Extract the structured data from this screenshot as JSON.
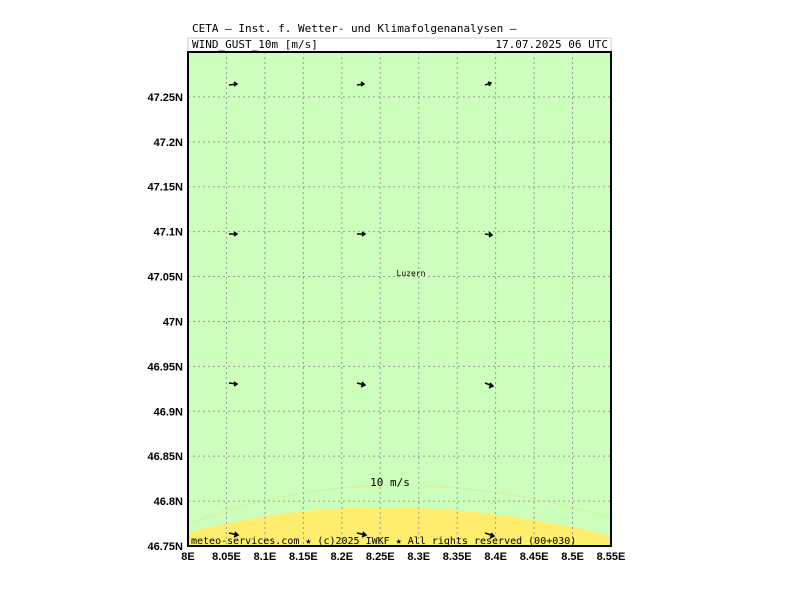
{
  "header": {
    "title": "CETA — Inst. f. Wetter- und Klimafolgenanalysen —",
    "parameter": "WIND_GUST_10m [m/s]",
    "valid_time": "17.07.2025 06 UTC"
  },
  "map": {
    "xlim": [
      8,
      8.55
    ],
    "ylim": [
      46.75,
      47.3
    ],
    "xticks": [
      {
        "value": 8,
        "label": "8E"
      },
      {
        "value": 8.05,
        "label": "8.05E"
      },
      {
        "value": 8.1,
        "label": "8.1E"
      },
      {
        "value": 8.15,
        "label": "8.15E"
      },
      {
        "value": 8.2,
        "label": "8.2E"
      },
      {
        "value": 8.25,
        "label": "8.25E"
      },
      {
        "value": 8.3,
        "label": "8.3E"
      },
      {
        "value": 8.35,
        "label": "8.35E"
      },
      {
        "value": 8.4,
        "label": "8.4E"
      },
      {
        "value": 8.45,
        "label": "8.45E"
      },
      {
        "value": 8.5,
        "label": "8.5E"
      },
      {
        "value": 8.55,
        "label": "8.55E"
      }
    ],
    "yticks": [
      {
        "value": 46.75,
        "label": "46.75N"
      },
      {
        "value": 46.8,
        "label": "46.8N"
      },
      {
        "value": 46.85,
        "label": "46.85N"
      },
      {
        "value": 46.9,
        "label": "46.9N"
      },
      {
        "value": 46.95,
        "label": "46.95N"
      },
      {
        "value": 47,
        "label": "47N"
      },
      {
        "value": 47.05,
        "label": "47.05N"
      },
      {
        "value": 47.1,
        "label": "47.1N"
      },
      {
        "value": 47.15,
        "label": "47.15N"
      },
      {
        "value": 47.2,
        "label": "47.2N"
      },
      {
        "value": 47.25,
        "label": "47.25N"
      }
    ],
    "city": "Luzern",
    "contour_label": "10 m/s"
  },
  "footer": "meteo-services.com ★ (c)2025 IWKF ★ All rights reserved (00+030)"
}
